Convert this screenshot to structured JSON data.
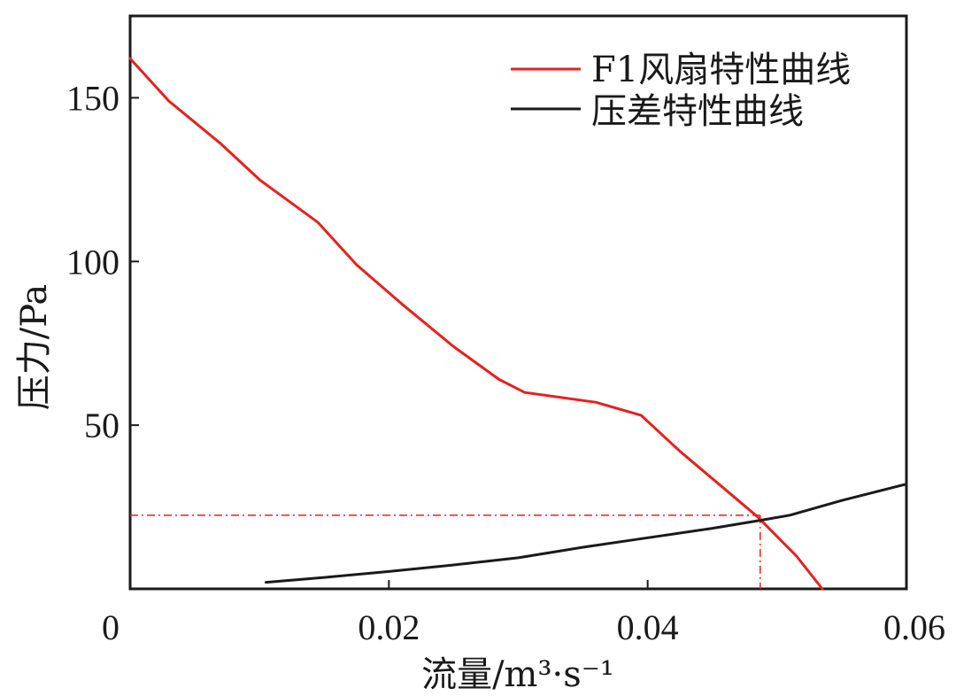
{
  "chart_data": {
    "type": "line",
    "xlabel": "流量/m³·s⁻¹",
    "ylabel": "压力/Pa",
    "xlim": [
      0,
      0.06
    ],
    "ylim": [
      0,
      175
    ],
    "xticks": [
      0,
      0.02,
      0.04,
      0.06
    ],
    "xtick_labels": [
      "0",
      "0.02",
      "0.04",
      "0.06"
    ],
    "yticks": [
      50,
      100,
      150
    ],
    "ytick_labels": [
      "50",
      "100",
      "150"
    ],
    "grid": false,
    "legend_position": "top-right",
    "series": [
      {
        "name": "F1风扇特性曲线",
        "color": "#e8201d",
        "x": [
          0,
          0.003,
          0.007,
          0.01,
          0.0145,
          0.0175,
          0.021,
          0.025,
          0.0285,
          0.0305,
          0.036,
          0.0395,
          0.0425,
          0.0455,
          0.0485,
          0.0515,
          0.0535
        ],
        "y": [
          162,
          149,
          136,
          125,
          112,
          99,
          87,
          74,
          64,
          60,
          57,
          53,
          42,
          32,
          22,
          10,
          0
        ]
      },
      {
        "name": "压差特性曲线",
        "color": "#1a1a1a",
        "x": [
          0.0105,
          0.015,
          0.02,
          0.025,
          0.03,
          0.035,
          0.04,
          0.045,
          0.0485,
          0.051,
          0.055,
          0.06
        ],
        "y": [
          2,
          3.5,
          5.3,
          7.3,
          9.5,
          12.7,
          15.6,
          18.5,
          20.8,
          22.5,
          27,
          32
        ]
      }
    ],
    "annotations": [
      {
        "type": "crosshair",
        "color": "#e8201d",
        "x": 0.0487,
        "y": 22.5
      }
    ]
  }
}
